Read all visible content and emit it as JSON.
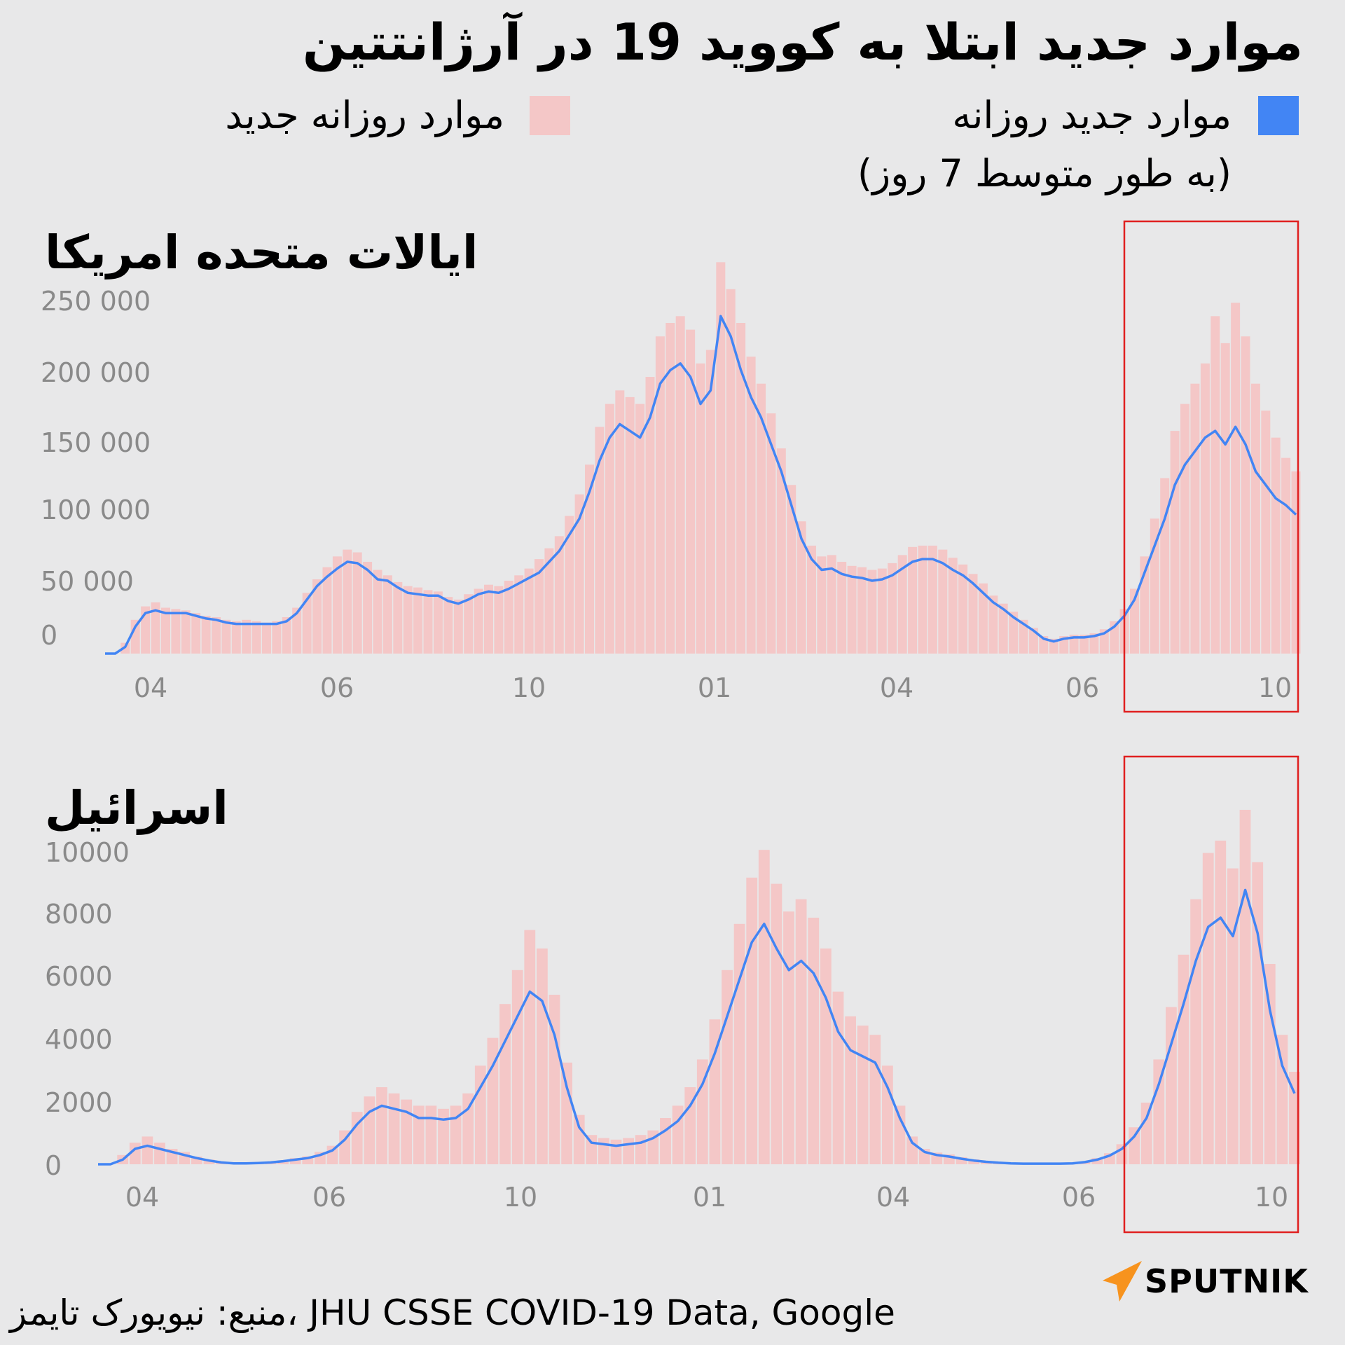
{
  "title": "موارد جدید ابتلا به کووید 19 در آرژانتتین",
  "legend": {
    "avg_line1": "موارد جدید روزانه",
    "avg_line2": "(به طور متوسط 7 روز)",
    "daily": "موارد روزانه جدید"
  },
  "colors": {
    "avg": "#4285f4",
    "daily": "#f4c7c7",
    "highlight": "#e02020",
    "background": "#e8e8e9"
  },
  "source": "منبع: نیویورک تایمز، JHU CSSE COVID-19 Data, Google",
  "brand": "SPUTNIK",
  "chart_data": [
    {
      "type": "bar+line",
      "title": "ایالات متحده امریکا",
      "x_tick_labels": [
        "04",
        "06",
        "10",
        "01",
        "04",
        "06",
        "10"
      ],
      "y_ticks": [
        0,
        50000,
        100000,
        150000,
        200000,
        250000
      ],
      "y_tick_labels": [
        "0",
        "50 000",
        "100 000",
        "150 000",
        "200 000",
        "250 000"
      ],
      "ylim": [
        0,
        300000
      ],
      "series": [
        {
          "kind": "line",
          "values": [
            0,
            0,
            5000,
            20000,
            30000,
            32000,
            30000,
            30000,
            30000,
            28000,
            26000,
            25000,
            23000,
            22000,
            22000,
            22000,
            22000,
            22000,
            24000,
            30000,
            40000,
            50000,
            57000,
            63000,
            68000,
            67000,
            62000,
            55000,
            54000,
            49000,
            45000,
            44000,
            43000,
            43000,
            39000,
            37000,
            40000,
            44000,
            46000,
            45000,
            48000,
            52000,
            56000,
            60000,
            68000,
            76000,
            88000,
            100000,
            120000,
            143000,
            160000,
            170000,
            165000,
            160000,
            175000,
            200000,
            210000,
            215000,
            205000,
            185000,
            195000,
            250000,
            235000,
            210000,
            190000,
            175000,
            155000,
            135000,
            110000,
            85000,
            70000,
            62000,
            63000,
            59000,
            57000,
            56000,
            54000,
            55000,
            58000,
            63000,
            68000,
            70000,
            70000,
            67000,
            62000,
            58000,
            52000,
            45000,
            38000,
            33000,
            27000,
            22000,
            17000,
            11000,
            9000,
            11000,
            12000,
            12000,
            13000,
            15000,
            20000,
            28000,
            40000,
            60000,
            80000,
            100000,
            125000,
            140000,
            150000,
            160000,
            165000,
            155000,
            168000,
            155000,
            135000,
            125000,
            115000,
            110000,
            103000
          ],
          "name": ""
        },
        {
          "kind": "bar",
          "values": [
            0,
            0,
            8000,
            25000,
            35000,
            38000,
            34000,
            33000,
            32000,
            30000,
            28000,
            27000,
            25000,
            24000,
            25000,
            24000,
            23000,
            24000,
            27000,
            34000,
            45000,
            55000,
            64000,
            72000,
            77000,
            75000,
            68000,
            62000,
            58000,
            53000,
            50000,
            49000,
            47000,
            46000,
            42000,
            40000,
            44000,
            48000,
            51000,
            50000,
            54000,
            58000,
            63000,
            70000,
            78000,
            87000,
            102000,
            118000,
            140000,
            168000,
            185000,
            195000,
            190000,
            185000,
            205000,
            235000,
            245000,
            250000,
            240000,
            215000,
            225000,
            290000,
            270000,
            245000,
            220000,
            200000,
            178000,
            152000,
            125000,
            98000,
            80000,
            72000,
            73000,
            68000,
            65000,
            64000,
            62000,
            63000,
            67000,
            73000,
            79000,
            80000,
            80000,
            77000,
            71000,
            66000,
            59000,
            52000,
            43000,
            37000,
            31000,
            25000,
            19000,
            13000,
            11000,
            13000,
            14000,
            14000,
            15000,
            18000,
            24000,
            33000,
            48000,
            72000,
            100000,
            130000,
            165000,
            185000,
            200000,
            215000,
            250000,
            230000,
            260000,
            235000,
            200000,
            180000,
            160000,
            145000,
            135000
          ],
          "name": ""
        }
      ]
    },
    {
      "type": "bar+line",
      "title": "اسرائیل",
      "x_tick_labels": [
        "04",
        "06",
        "10",
        "01",
        "04",
        "06",
        "10"
      ],
      "y_ticks": [
        0,
        2000,
        4000,
        6000,
        8000,
        10000
      ],
      "y_tick_labels": [
        "0",
        "2000",
        "4000",
        "6000",
        "8000",
        "10000"
      ],
      "ylim": [
        0,
        13000
      ],
      "series": [
        {
          "kind": "line",
          "values": [
            0,
            0,
            150,
            500,
            600,
            500,
            400,
            300,
            200,
            120,
            60,
            30,
            30,
            40,
            60,
            100,
            150,
            200,
            300,
            450,
            800,
            1300,
            1700,
            1900,
            1800,
            1700,
            1500,
            1500,
            1450,
            1500,
            1800,
            2500,
            3200,
            4000,
            4800,
            5600,
            5300,
            4200,
            2500,
            1200,
            700,
            650,
            600,
            650,
            700,
            850,
            1100,
            1400,
            1900,
            2600,
            3600,
            4800,
            6000,
            7200,
            7800,
            7000,
            6300,
            6600,
            6200,
            5400,
            4300,
            3700,
            3500,
            3300,
            2500,
            1500,
            700,
            400,
            300,
            250,
            180,
            120,
            80,
            50,
            30,
            20,
            20,
            20,
            20,
            30,
            70,
            150,
            280,
            500,
            900,
            1500,
            2600,
            3900,
            5200,
            6600,
            7700,
            8000,
            7400,
            8900,
            7500,
            5000,
            3200,
            2300
          ],
          "name": ""
        },
        {
          "kind": "bar",
          "values": [
            0,
            0,
            300,
            700,
            900,
            700,
            500,
            400,
            250,
            150,
            80,
            40,
            40,
            50,
            80,
            130,
            200,
            260,
            400,
            600,
            1100,
            1700,
            2200,
            2500,
            2300,
            2100,
            1900,
            1900,
            1800,
            1900,
            2300,
            3200,
            4100,
            5200,
            6300,
            7600,
            7000,
            5500,
            3300,
            1600,
            950,
            850,
            800,
            850,
            950,
            1100,
            1500,
            1900,
            2500,
            3400,
            4700,
            6300,
            7800,
            9300,
            10200,
            9100,
            8200,
            8600,
            8000,
            7000,
            5600,
            4800,
            4500,
            4200,
            3200,
            1900,
            900,
            500,
            380,
            320,
            230,
            160,
            100,
            70,
            40,
            30,
            30,
            30,
            30,
            40,
            90,
            200,
            360,
            650,
            1200,
            2000,
            3400,
            5100,
            6800,
            8600,
            10100,
            10500,
            9600,
            11500,
            9800,
            6500,
            4200,
            3000
          ],
          "name": ""
        }
      ]
    }
  ]
}
